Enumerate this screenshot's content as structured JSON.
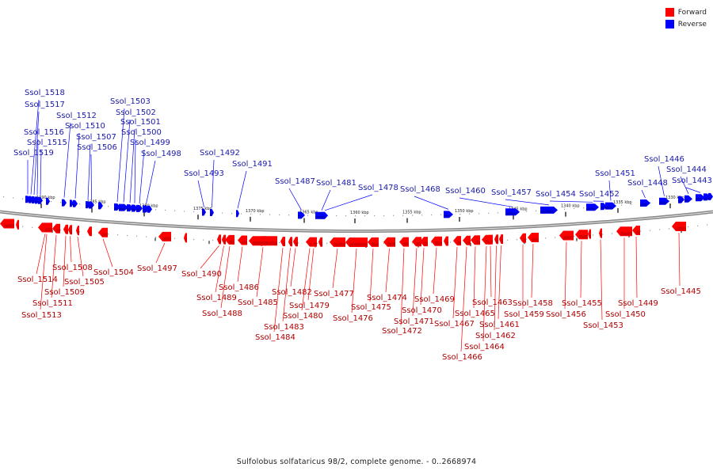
{
  "legend": {
    "forward_label": "Forward",
    "reverse_label": "Reverse",
    "forward_color": "#ff0000",
    "reverse_color": "#0000ff"
  },
  "caption": "Sulfolobus solfataricus 98/2, complete genome. - 0..2668974",
  "scale_ticks": [
    "1390 kbp",
    "1385 kbp",
    "1380 kbp",
    "1375 kbp",
    "1370 kbp",
    "1365 kbp",
    "1360 kbp",
    "1355 kbp",
    "1350 kbp",
    "1345 kbp",
    "1340 kbp",
    "1335 kbp",
    "1330 kbp"
  ],
  "reverse_genes": [
    "Ssol_1518",
    "Ssol_1517",
    "Ssol_1516",
    "Ssol_1515",
    "Ssol_1519",
    "Ssol_1512",
    "Ssol_1510",
    "Ssol_1507",
    "Ssol_1506",
    "Ssol_1503",
    "Ssol_1502",
    "Ssol_1501",
    "Ssol_1500",
    "Ssol_1499",
    "Ssol_1498",
    "Ssol_1493",
    "Ssol_1492",
    "Ssol_1491",
    "Ssol_1487",
    "Ssol_1481",
    "Ssol_1478",
    "Ssol_1468",
    "Ssol_1460",
    "Ssol_1457",
    "Ssol_1454",
    "Ssol_1452",
    "Ssol_1451",
    "Ssol_1448",
    "Ssol_1446",
    "Ssol_1444",
    "Ssol_1443"
  ],
  "forward_genes": [
    "Ssol_1514",
    "Ssol_1513",
    "Ssol_1511",
    "Ssol_1509",
    "Ssol_1508",
    "Ssol_1505",
    "Ssol_1504",
    "Ssol_1497",
    "Ssol_1490",
    "Ssol_1489",
    "Ssol_1488",
    "Ssol_1486",
    "Ssol_1485",
    "Ssol_1484",
    "Ssol_1483",
    "Ssol_1482",
    "Ssol_1480",
    "Ssol_1479",
    "Ssol_1477",
    "Ssol_1476",
    "Ssol_1475",
    "Ssol_1474",
    "Ssol_1472",
    "Ssol_1471",
    "Ssol_1470",
    "Ssol_1469",
    "Ssol_1467",
    "Ssol_1466",
    "Ssol_1465",
    "Ssol_1464",
    "Ssol_1463",
    "Ssol_1462",
    "Ssol_1461",
    "Ssol_1459",
    "Ssol_1458",
    "Ssol_1456",
    "Ssol_1455",
    "Ssol_1453",
    "Ssol_1450",
    "Ssol_1449",
    "Ssol_1445"
  ]
}
